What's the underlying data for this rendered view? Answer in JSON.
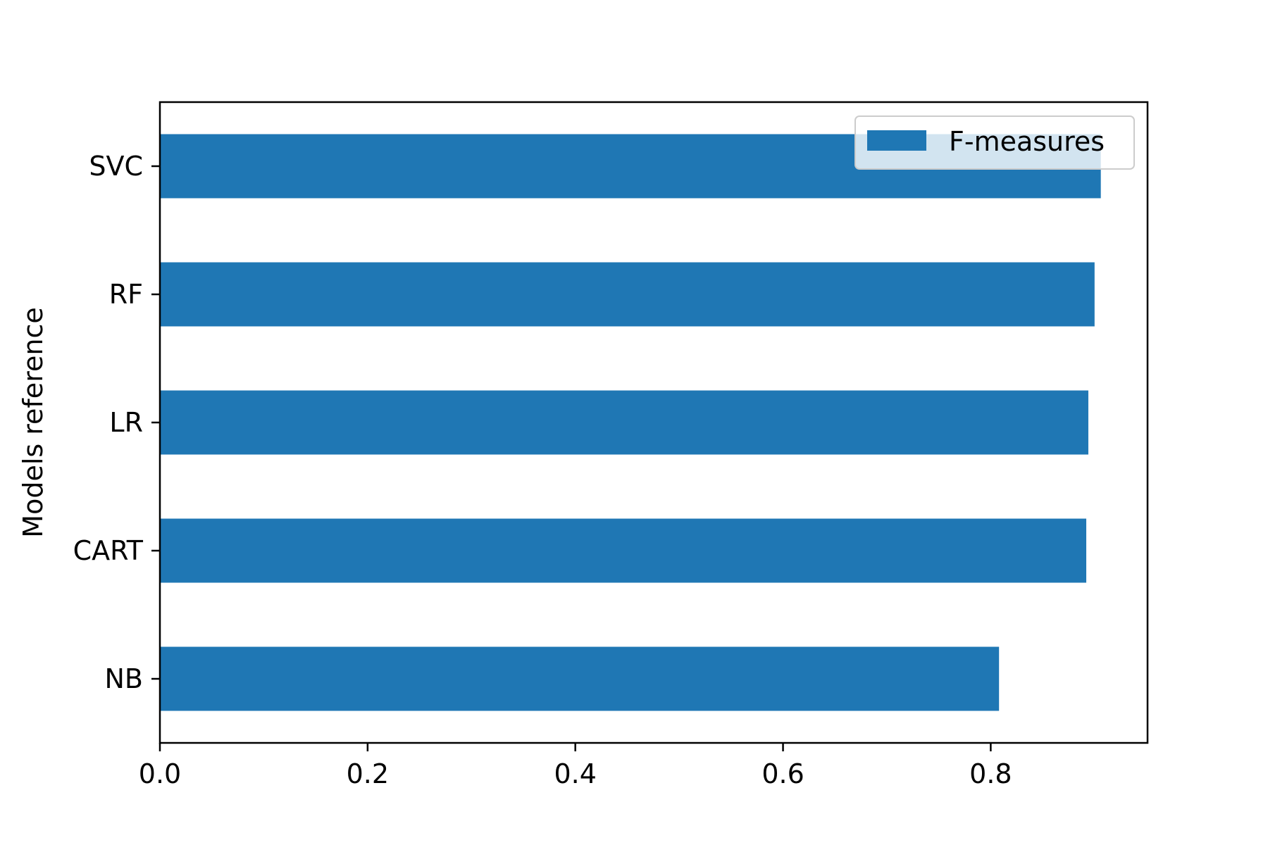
{
  "chart_data": {
    "type": "bar",
    "orientation": "horizontal",
    "categories": [
      "NB",
      "CART",
      "LR",
      "RF",
      "SVC"
    ],
    "series": [
      {
        "name": "F-measures",
        "color": "#1f77b4",
        "values": [
          0.808,
          0.892,
          0.894,
          0.9,
          0.906
        ]
      }
    ],
    "xlabel": "",
    "ylabel": "Models reference",
    "xlim": [
      0.0,
      0.951
    ],
    "xticks": [
      0.0,
      0.2,
      0.4,
      0.6,
      0.8
    ],
    "xtick_labels": [
      "0.0",
      "0.2",
      "0.4",
      "0.6",
      "0.8"
    ],
    "grid": false,
    "legend_position": "top-right"
  }
}
